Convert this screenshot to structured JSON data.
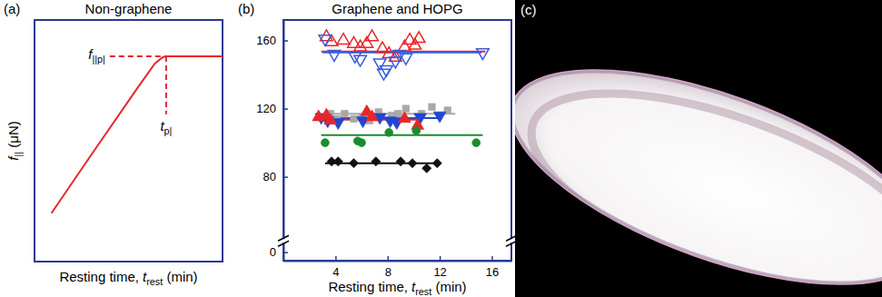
{
  "chart_data": [
    {
      "panel": "(a)",
      "type": "line",
      "title": "Non-graphene",
      "x_label": [
        {
          "text": "Resting time, ",
          "style": "normal"
        },
        {
          "text": "t",
          "style": "italic"
        },
        {
          "text": "rest",
          "style": "sub"
        },
        {
          "text": " (min)",
          "style": "normal"
        }
      ],
      "y_label": [
        {
          "text": "f",
          "style": "italic"
        },
        {
          "text": "||",
          "style": "sub"
        },
        {
          "text": " (μN)",
          "style": "normal"
        }
      ],
      "xlim": [
        0,
        10
      ],
      "ylim": [
        0,
        10
      ],
      "tick_labels": false,
      "series": [
        {
          "color": "#e8262a",
          "line_style": "solid",
          "x": [
            0.9,
            3.0,
            5.4,
            6.4,
            6.8,
            7.0,
            10
          ],
          "values": [
            2.0,
            4.4,
            7.1,
            8.2,
            8.45,
            8.5,
            8.5
          ]
        }
      ],
      "reference_lines": [
        {
          "color": "#e8262a",
          "line_style": "dashed",
          "x": [
            4.0,
            7.0
          ],
          "values": [
            8.5,
            8.5
          ],
          "label": [
            {
              "text": "f",
              "style": "italic"
            },
            {
              "text": "||p|",
              "style": "sub"
            }
          ]
        },
        {
          "color": "#e8262a",
          "line_style": "dashed",
          "x": [
            7.0,
            7.0
          ],
          "values": [
            8.5,
            6.1
          ],
          "label": [
            {
              "text": "t",
              "style": "italic"
            },
            {
              "text": "p|",
              "style": "sub"
            }
          ]
        }
      ]
    },
    {
      "panel": "(b)",
      "type": "scatter",
      "title": "Graphene and HOPG",
      "x_label": [
        {
          "text": "Resting time, ",
          "style": "normal"
        },
        {
          "text": "t",
          "style": "italic"
        },
        {
          "text": "rest",
          "style": "sub"
        },
        {
          "text": " (min)",
          "style": "normal"
        }
      ],
      "xlim": [
        0,
        17.5
      ],
      "ylim": [
        -5,
        172
      ],
      "ybreak": [
        5,
        44
      ],
      "xticks": [
        4,
        8,
        12,
        16
      ],
      "yticks": [
        0,
        80,
        120,
        160
      ],
      "series": [
        {
          "type": "line",
          "color": "#e8262a",
          "line_style": "solid",
          "x": [
            2.9,
            15.5
          ],
          "values": [
            153.5,
            153.5
          ]
        },
        {
          "type": "line",
          "color": "#3a5bdc",
          "line_style": "solid",
          "x": [
            3.0,
            15.2
          ],
          "values": [
            153,
            153
          ]
        },
        {
          "type": "line",
          "color": "#a9a9a9",
          "line_style": "solid",
          "x": [
            3.1,
            13.2
          ],
          "values": [
            117,
            117
          ]
        },
        {
          "type": "line",
          "color": "#2146d0",
          "line_style": "solid",
          "x": [
            2.8,
            12.2
          ],
          "values": [
            114.5,
            114.5
          ]
        },
        {
          "type": "line",
          "color": "#e8262a",
          "line_style": "solid",
          "x": [
            2.6,
            10.4
          ],
          "values": [
            113.5,
            113.5
          ]
        },
        {
          "type": "line",
          "color": "#1a8c2e",
          "line_style": "solid",
          "x": [
            2.9,
            15.3
          ],
          "values": [
            104.5,
            104.5
          ]
        },
        {
          "type": "line",
          "color": "#111111",
          "line_style": "solid",
          "x": [
            3.2,
            12.1
          ],
          "values": [
            88,
            88
          ]
        },
        {
          "type": "scatter",
          "color": "#e8262a",
          "marker": "triangle-up-open",
          "x": [
            3.3,
            3.7,
            4.6,
            5.4,
            5.9,
            6.4,
            6.8,
            7.6,
            8.1,
            8.6,
            9.3,
            9.7,
            10.1,
            10.4
          ],
          "values": [
            162,
            159,
            160,
            158,
            156,
            158,
            162,
            155,
            152,
            150,
            156,
            160,
            157,
            161
          ]
        },
        {
          "type": "scatter",
          "color": "#3a5bdc",
          "marker": "triangle-down-open",
          "x": [
            3.2,
            3.9,
            5.5,
            5.9,
            7.4,
            7.7,
            7.9,
            8.6,
            8.9,
            9.4,
            15.3
          ],
          "values": [
            161,
            152,
            151,
            149,
            147,
            141,
            143,
            148,
            152,
            150,
            153
          ]
        },
        {
          "type": "scatter",
          "color": "#a9a9a9",
          "marker": "square",
          "x": [
            3.6,
            4.1,
            4.7,
            5.4,
            6.0,
            6.6,
            7.3,
            8.3,
            8.8,
            9.4,
            10.6,
            11.4,
            12.6
          ],
          "values": [
            117,
            114,
            117,
            114,
            115,
            113,
            118,
            116,
            117,
            120,
            117,
            121,
            119
          ]
        },
        {
          "type": "scatter",
          "color": "#2146d0",
          "marker": "triangle-down",
          "x": [
            2.9,
            3.4,
            4.2,
            6.1,
            7.4,
            8.2,
            8.7,
            10.5,
            12.0
          ],
          "values": [
            115,
            113,
            112,
            113,
            115,
            113,
            112,
            115,
            116
          ]
        },
        {
          "type": "scatter",
          "color": "#e8262a",
          "marker": "triangle-up",
          "x": [
            2.7,
            3.3,
            3.6,
            6.4,
            6.8,
            9.3,
            10.3
          ],
          "values": [
            115,
            116,
            113,
            118,
            115,
            114,
            110
          ]
        },
        {
          "type": "scatter",
          "color": "#1a8c2e",
          "marker": "circle",
          "x": [
            3.2,
            5.7,
            6.0,
            8.1,
            10.2,
            14.8
          ],
          "values": [
            100,
            101,
            100,
            106,
            107,
            100
          ]
        },
        {
          "type": "scatter",
          "color": "#111111",
          "marker": "diamond",
          "x": [
            3.7,
            4.2,
            5.4,
            7.1,
            9.0,
            9.9,
            11.0,
            11.8
          ],
          "values": [
            89,
            89,
            88,
            89,
            89,
            88,
            85,
            88
          ]
        }
      ]
    }
  ],
  "image": {
    "label": "(c)"
  }
}
